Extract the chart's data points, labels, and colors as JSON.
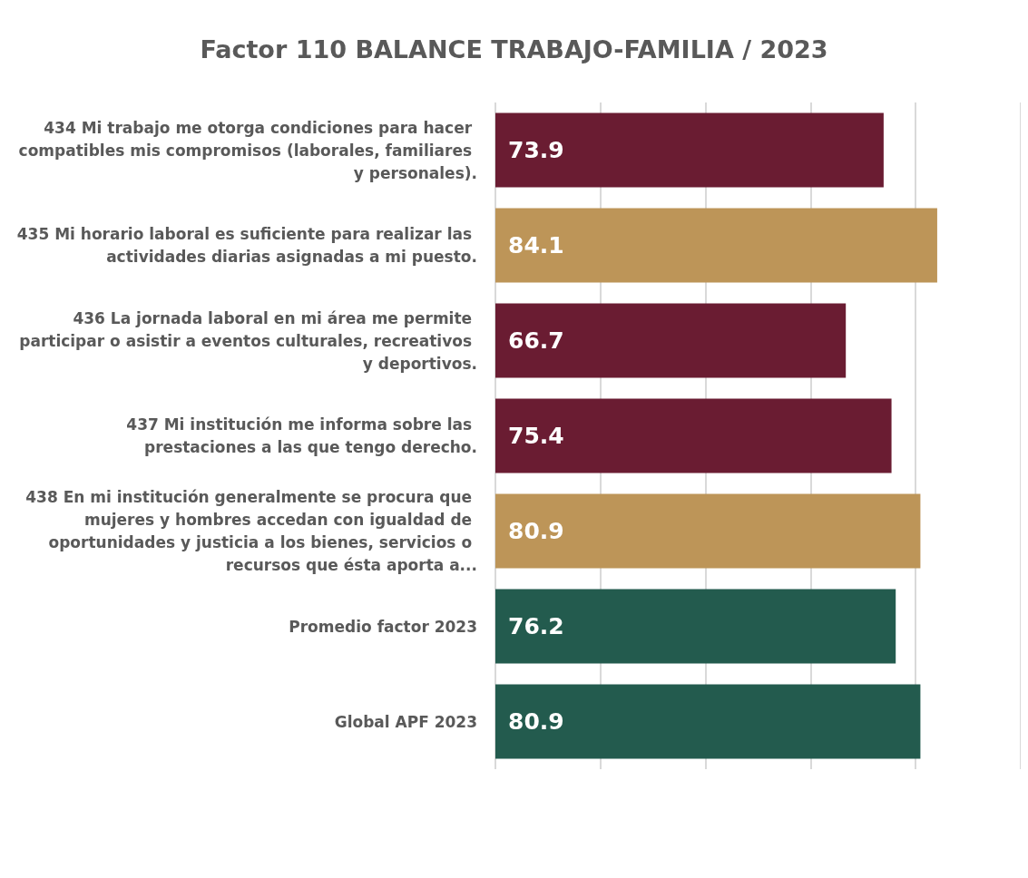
{
  "chart_data": {
    "type": "bar",
    "orientation": "horizontal",
    "title": "Factor 110 BALANCE TRABAJO-FAMILIA / 2023",
    "categories": [
      "434 Mi trabajo me otorga condiciones para hacer compatibles mis compromisos (laborales, familiares y personales).",
      "435 Mi horario laboral es suficiente para realizar las actividades diarias asignadas a mi puesto.",
      "436 La jornada laboral en mi área me permite participar o asistir a eventos culturales, recreativos y deportivos.",
      "437 Mi institución me informa sobre las prestaciones a las que tengo derecho.",
      "438 En mi institución generalmente se procura que mujeres y hombres accedan con igualdad de oportunidades y justicia a los bienes, servicios o recursos que ésta aporta a...",
      "Promedio factor 2023",
      "Global APF 2023"
    ],
    "values": [
      73.9,
      84.1,
      66.7,
      75.4,
      80.9,
      76.2,
      80.9
    ],
    "colors": [
      "#6a1c32",
      "#bd9558",
      "#6a1c32",
      "#6a1c32",
      "#bd9558",
      "#235b4e",
      "#235b4e"
    ],
    "xlim": [
      0,
      100
    ],
    "xticks": [
      {
        "value": 0,
        "label": null
      },
      {
        "value": 20,
        "label": null
      },
      {
        "value": 40,
        "label": null
      },
      {
        "value": 60,
        "label": null
      },
      {
        "value": 80,
        "label": null
      },
      {
        "value": 100,
        "label": null
      }
    ],
    "tick_labels": "y",
    "grid": "x",
    "data_labels": true
  }
}
